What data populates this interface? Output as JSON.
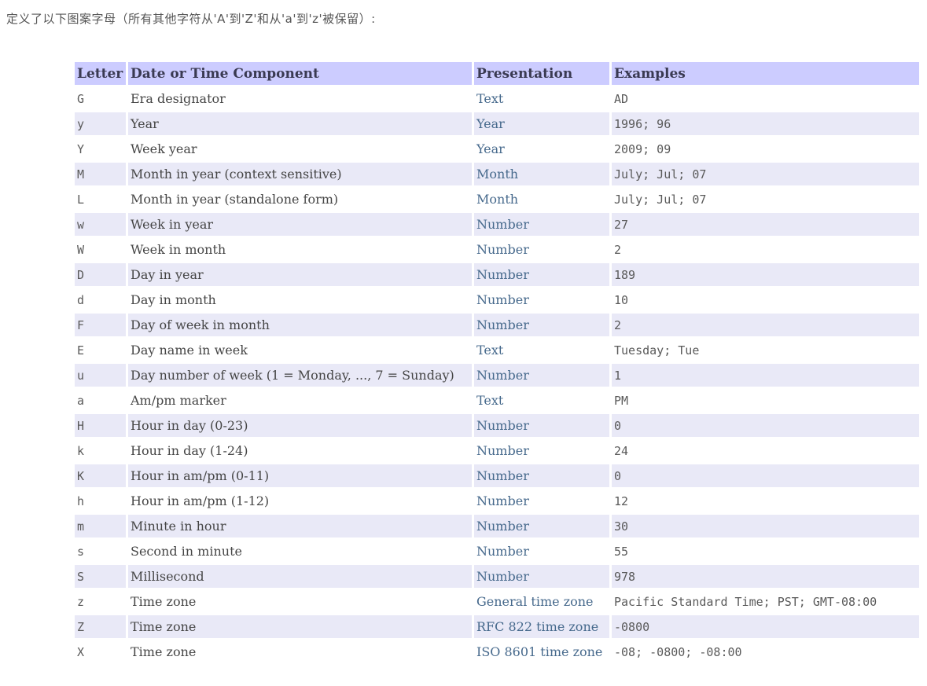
{
  "intro": "定义了以下图案字母（所有其他字符从'A'到'Z'和从'a'到'z'被保留）:",
  "table": {
    "headers": [
      "Letter",
      "Date or Time Component",
      "Presentation",
      "Examples"
    ],
    "rows": [
      {
        "letter": "G",
        "component": "Era designator",
        "presentation": "Text",
        "examples": "AD"
      },
      {
        "letter": "y",
        "component": "Year",
        "presentation": "Year",
        "examples": "1996; 96"
      },
      {
        "letter": "Y",
        "component": "Week year",
        "presentation": "Year",
        "examples": "2009; 09"
      },
      {
        "letter": "M",
        "component": "Month in year (context sensitive)",
        "presentation": "Month",
        "examples": "July; Jul; 07"
      },
      {
        "letter": "L",
        "component": "Month in year (standalone form)",
        "presentation": "Month",
        "examples": "July; Jul; 07"
      },
      {
        "letter": "w",
        "component": "Week in year",
        "presentation": "Number",
        "examples": "27"
      },
      {
        "letter": "W",
        "component": "Week in month",
        "presentation": "Number",
        "examples": "2"
      },
      {
        "letter": "D",
        "component": "Day in year",
        "presentation": "Number",
        "examples": "189"
      },
      {
        "letter": "d",
        "component": "Day in month",
        "presentation": "Number",
        "examples": "10"
      },
      {
        "letter": "F",
        "component": "Day of week in month",
        "presentation": "Number",
        "examples": "2"
      },
      {
        "letter": "E",
        "component": "Day name in week",
        "presentation": "Text",
        "examples": "Tuesday; Tue"
      },
      {
        "letter": "u",
        "component": "Day number of week (1 = Monday, ..., 7 = Sunday)",
        "presentation": "Number",
        "examples": "1"
      },
      {
        "letter": "a",
        "component": "Am/pm marker",
        "presentation": "Text",
        "examples": "PM"
      },
      {
        "letter": "H",
        "component": "Hour in day (0-23)",
        "presentation": "Number",
        "examples": "0"
      },
      {
        "letter": "k",
        "component": "Hour in day (1-24)",
        "presentation": "Number",
        "examples": "24"
      },
      {
        "letter": "K",
        "component": "Hour in am/pm (0-11)",
        "presentation": "Number",
        "examples": "0"
      },
      {
        "letter": "h",
        "component": "Hour in am/pm (1-12)",
        "presentation": "Number",
        "examples": "12"
      },
      {
        "letter": "m",
        "component": "Minute in hour",
        "presentation": "Number",
        "examples": "30"
      },
      {
        "letter": "s",
        "component": "Second in minute",
        "presentation": "Number",
        "examples": "55"
      },
      {
        "letter": "S",
        "component": "Millisecond",
        "presentation": "Number",
        "examples": "978"
      },
      {
        "letter": "z",
        "component": "Time zone",
        "presentation": "General time zone",
        "examples": "Pacific Standard Time; PST; GMT-08:00"
      },
      {
        "letter": "Z",
        "component": "Time zone",
        "presentation": "RFC 822 time zone",
        "examples": "-0800"
      },
      {
        "letter": "X",
        "component": "Time zone",
        "presentation": "ISO 8601 time zone",
        "examples": "-08; -0800; -08:00"
      }
    ]
  },
  "colors": {
    "header_bg": "#ccccff",
    "alt_row_bg": "#e9e9f7",
    "header_text": "#3a3a52",
    "component_text": "#454545",
    "mono_text": "#5a5a5a",
    "link_color": "#46698c",
    "intro_color": "#555555"
  }
}
